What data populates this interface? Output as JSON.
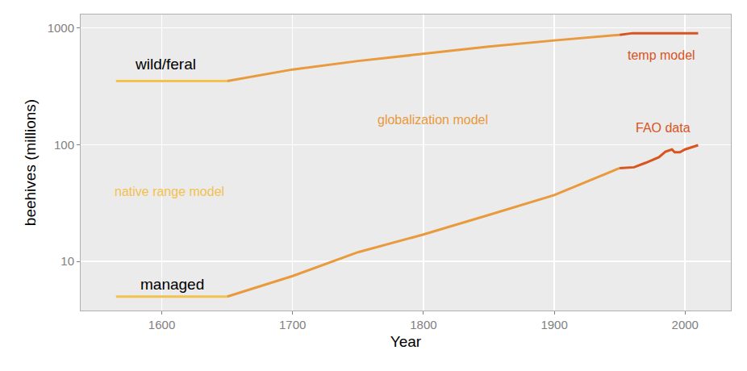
{
  "chart_data": {
    "type": "line",
    "x_label": "Year",
    "y_label": "beehives (millions)",
    "log": "y",
    "grid": true,
    "xlim": [
      1538,
      2035
    ],
    "ylim": [
      3.8,
      1300
    ],
    "xticks": [
      1600,
      1700,
      1800,
      1900,
      2000
    ],
    "yticks": [
      10,
      100,
      1000
    ],
    "models": [
      {
        "name": "native range model",
        "color": "#f2c14e",
        "label_x": 1606,
        "label_y": 39.5
      },
      {
        "name": "globalization model",
        "color": "#e89a3c",
        "label_x": 1807,
        "label_y": 162
      },
      {
        "name": "temp model",
        "color": "#d9541e",
        "label_x": 1982,
        "label_y": 580
      },
      {
        "name": "FAO data",
        "color": "#d9541e",
        "label_x": 1983,
        "label_y": 140
      }
    ],
    "series": [
      {
        "name": "wild/feral",
        "label_x": 1603,
        "label_y": 487,
        "segments": [
          {
            "model": "native range model",
            "x": [
              1565,
              1650
            ],
            "values": [
              350,
              350
            ]
          },
          {
            "model": "globalization model",
            "x": [
              1650,
              1700,
              1750,
              1800,
              1850,
              1900,
              1950
            ],
            "values": [
              350,
              440,
              520,
              600,
              690,
              780,
              870
            ]
          },
          {
            "model": "temp model",
            "x": [
              1950,
              1960,
              2010
            ],
            "values": [
              870,
              900,
              900
            ]
          }
        ]
      },
      {
        "name": "managed",
        "label_x": 1608,
        "label_y": 6.4,
        "segments": [
          {
            "model": "native range model",
            "x": [
              1565,
              1650
            ],
            "values": [
              5,
              5
            ]
          },
          {
            "model": "globalization model",
            "x": [
              1650,
              1700,
              1750,
              1800,
              1850,
              1900,
              1950
            ],
            "values": [
              5,
              7.5,
              12,
              17,
              25,
              37,
              63
            ]
          },
          {
            "model": "FAO data",
            "x": [
              1950,
              1961,
              1970,
              1980,
              1985,
              1990,
              1992,
              1996,
              2000,
              2005,
              2010
            ],
            "values": [
              63,
              64,
              70,
              78,
              87,
              91,
              86,
              86,
              91,
              95,
              99
            ]
          }
        ]
      }
    ]
  }
}
